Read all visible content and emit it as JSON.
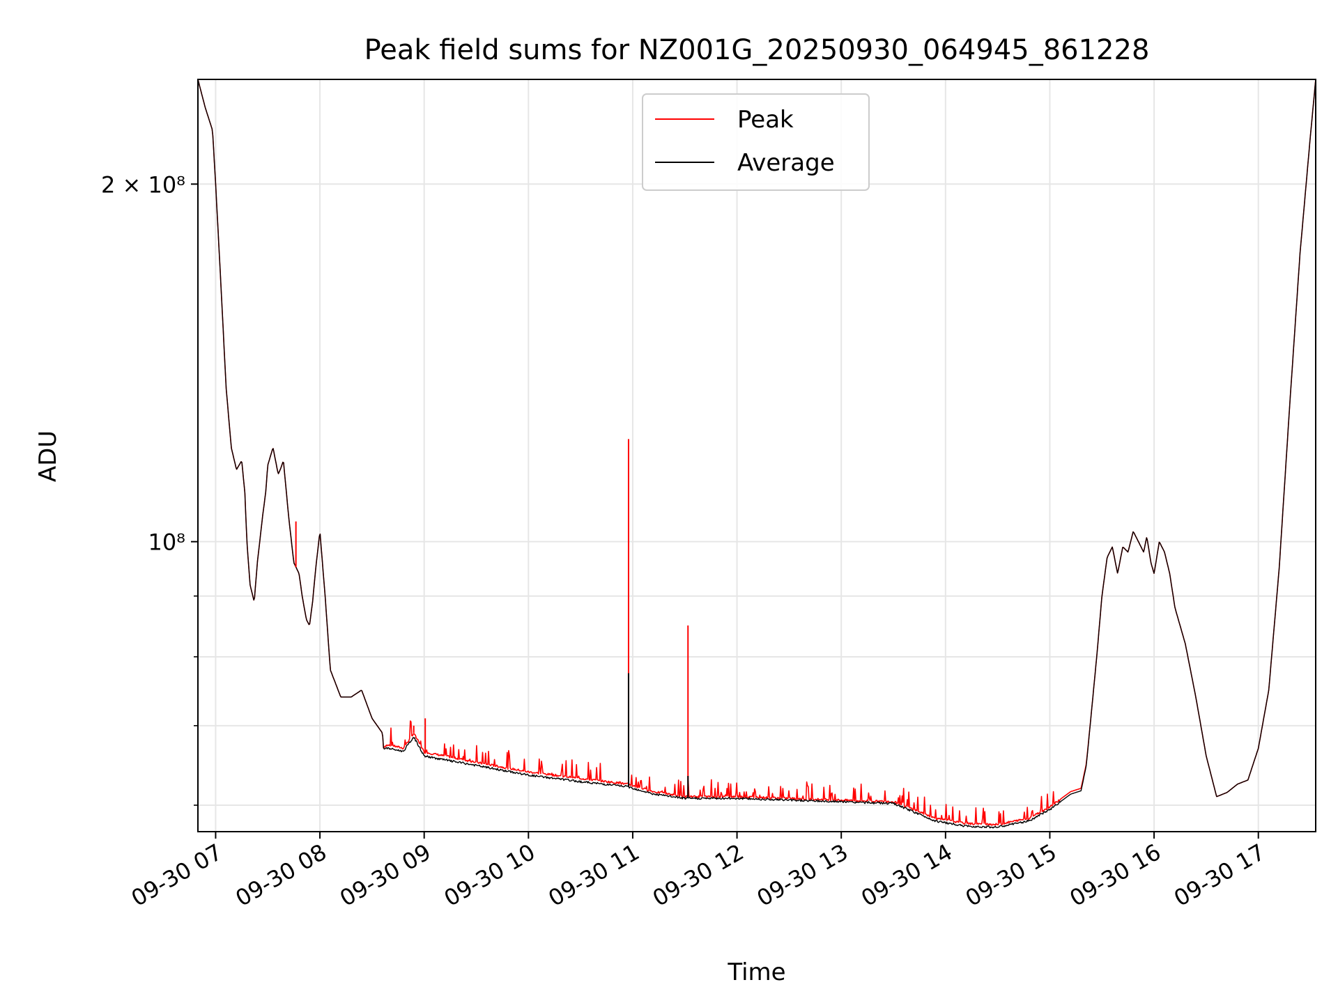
{
  "chart_data": {
    "type": "line",
    "title": "Peak field sums for NZ001G_20250930_064945_861228",
    "xlabel": "Time",
    "ylabel": "ADU",
    "yscale": "log",
    "xlim": [
      6.83,
      17.55
    ],
    "ylim": [
      57000000,
      245000000
    ],
    "grid": true,
    "legend_position": "top-center",
    "x_tick_values": [
      7,
      8,
      9,
      10,
      11,
      12,
      13,
      14,
      15,
      16,
      17
    ],
    "x_tick_labels": [
      "09-30 07",
      "09-30 08",
      "09-30 09",
      "09-30 10",
      "09-30 11",
      "09-30 12",
      "09-30 13",
      "09-30 14",
      "09-30 15",
      "09-30 16",
      "09-30 17"
    ],
    "y_major_ticks": [
      {
        "value": 200000000,
        "label": "2 × 10⁸"
      },
      {
        "value": 100000000,
        "label": "10⁸"
      }
    ],
    "y_minor_ticks": [
      60000000,
      70000000,
      80000000,
      90000000
    ],
    "series": [
      {
        "name": "Peak",
        "color": "#ff0000",
        "x": [
          6.83,
          6.9,
          6.97,
          7.0,
          7.05,
          7.1,
          7.15,
          7.2,
          7.25,
          7.28,
          7.3,
          7.33,
          7.37,
          7.4,
          7.45,
          7.48,
          7.5,
          7.55,
          7.6,
          7.62,
          7.65,
          7.7,
          7.75,
          7.8,
          7.83,
          7.87,
          7.9,
          7.93,
          7.96,
          8.0,
          8.05,
          8.1,
          8.2,
          8.3,
          8.4,
          8.5,
          8.6,
          8.61,
          8.65,
          8.8,
          8.9,
          9.0,
          9.2,
          9.5,
          10.0,
          10.5,
          10.95,
          11.2,
          11.5,
          12.0,
          12.5,
          13.0,
          13.5,
          13.7,
          13.9,
          14.2,
          14.5,
          14.8,
          15.0,
          15.2,
          15.3,
          15.35,
          15.4,
          15.45,
          15.5,
          15.55,
          15.6,
          15.65,
          15.7,
          15.75,
          15.8,
          15.85,
          15.9,
          15.93,
          15.97,
          16.0,
          16.05,
          16.1,
          16.15,
          16.2,
          16.3,
          16.4,
          16.5,
          16.6,
          16.7,
          16.8,
          16.9,
          17.0,
          17.1,
          17.2,
          17.3,
          17.4,
          17.5,
          17.55
        ],
        "values": [
          245000000,
          232000000,
          222000000,
          200000000,
          165000000,
          135000000,
          120000000,
          115000000,
          117000000,
          110000000,
          100000000,
          92000000,
          89000000,
          96000000,
          105000000,
          110000000,
          116000000,
          120000000,
          114000000,
          115000000,
          117000000,
          105000000,
          96000000,
          94000000,
          90000000,
          86000000,
          85000000,
          89000000,
          95000000,
          102000000,
          90000000,
          78000000,
          74000000,
          74000000,
          75000000,
          71000000,
          69000000,
          67000000,
          67500000,
          67000000,
          69000000,
          66500000,
          66000000,
          65200000,
          64000000,
          63200000,
          62500000,
          61600000,
          61000000,
          61000000,
          60800000,
          60600000,
          60400000,
          59500000,
          58500000,
          57900000,
          57800000,
          58500000,
          59800000,
          61600000,
          62000000,
          65000000,
          72000000,
          80000000,
          90000000,
          97000000,
          99000000,
          94000000,
          99000000,
          98000000,
          102000000,
          100000000,
          98000000,
          101000000,
          96000000,
          94000000,
          100000000,
          98000000,
          94000000,
          88000000,
          82000000,
          74000000,
          66000000,
          61000000,
          61500000,
          62500000,
          63000000,
          67000000,
          75000000,
          95000000,
          130000000,
          175000000,
          220000000,
          245000000
        ]
      },
      {
        "name": "Average",
        "color": "#000000",
        "x": [
          6.83,
          6.9,
          6.97,
          7.0,
          7.05,
          7.1,
          7.15,
          7.2,
          7.25,
          7.28,
          7.3,
          7.33,
          7.37,
          7.4,
          7.45,
          7.48,
          7.5,
          7.55,
          7.6,
          7.62,
          7.65,
          7.7,
          7.75,
          7.8,
          7.83,
          7.87,
          7.9,
          7.93,
          7.96,
          8.0,
          8.05,
          8.1,
          8.2,
          8.3,
          8.4,
          8.5,
          8.6,
          8.61,
          8.65,
          8.8,
          8.9,
          9.0,
          9.2,
          9.5,
          10.0,
          10.5,
          10.95,
          11.2,
          11.5,
          12.0,
          12.5,
          13.0,
          13.5,
          13.7,
          13.9,
          14.2,
          14.5,
          14.8,
          15.0,
          15.2,
          15.3,
          15.35,
          15.4,
          15.45,
          15.5,
          15.55,
          15.6,
          15.65,
          15.7,
          15.75,
          15.8,
          15.85,
          15.9,
          15.93,
          15.97,
          16.0,
          16.05,
          16.1,
          16.15,
          16.2,
          16.3,
          16.4,
          16.5,
          16.6,
          16.7,
          16.8,
          16.9,
          17.0,
          17.1,
          17.2,
          17.3,
          17.4,
          17.5,
          17.55
        ],
        "values": [
          245000000,
          232000000,
          222000000,
          200000000,
          165000000,
          135000000,
          120000000,
          115000000,
          117000000,
          110000000,
          100000000,
          92000000,
          89000000,
          96000000,
          105000000,
          110000000,
          116000000,
          120000000,
          114000000,
          115000000,
          117000000,
          105000000,
          96000000,
          94000000,
          90000000,
          86000000,
          85000000,
          89000000,
          95000000,
          102000000,
          90000000,
          78000000,
          74000000,
          74000000,
          75000000,
          71000000,
          69000000,
          67000000,
          67000000,
          66600000,
          68500000,
          66000000,
          65500000,
          64800000,
          63600000,
          62800000,
          62200000,
          61300000,
          60800000,
          60800000,
          60600000,
          60400000,
          60200000,
          59200000,
          58200000,
          57600000,
          57500000,
          58200000,
          59500000,
          61300000,
          61700000,
          64800000,
          72000000,
          80000000,
          90000000,
          97000000,
          99000000,
          94000000,
          99000000,
          98000000,
          102000000,
          100000000,
          98000000,
          101000000,
          96000000,
          94000000,
          100000000,
          98000000,
          94000000,
          88000000,
          82000000,
          74000000,
          66000000,
          61000000,
          61500000,
          62500000,
          63000000,
          67000000,
          75000000,
          95000000,
          130000000,
          175000000,
          220000000,
          245000000
        ]
      }
    ],
    "spikes": [
      {
        "series": "Peak",
        "x": 10.96,
        "value": 122000000
      },
      {
        "series": "Average",
        "x": 10.96,
        "value": 77500000
      },
      {
        "series": "Peak",
        "x": 11.53,
        "value": 85000000
      },
      {
        "series": "Average",
        "x": 11.53,
        "value": 63500000
      },
      {
        "series": "Peak",
        "x": 8.9,
        "value": 70000000
      },
      {
        "series": "Peak",
        "x": 9.01,
        "value": 71000000
      },
      {
        "series": "Peak",
        "x": 7.77,
        "value": 104000000
      }
    ]
  }
}
